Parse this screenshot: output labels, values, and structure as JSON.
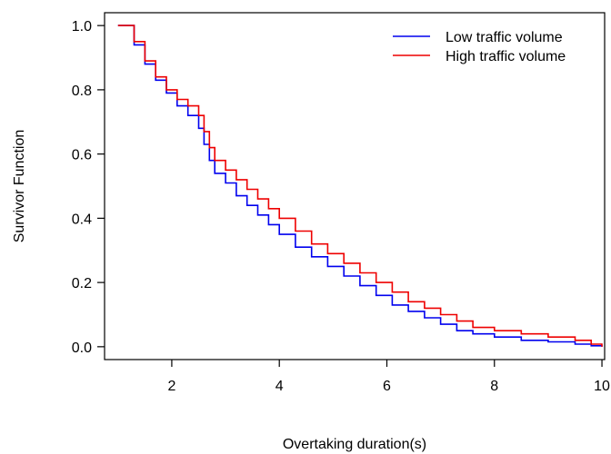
{
  "chart_data": {
    "type": "line",
    "title": "",
    "xlabel": "Overtaking duration(s)",
    "ylabel": "Survivor Function",
    "xlim": [
      0.75,
      10.05
    ],
    "ylim": [
      -0.04,
      1.04
    ],
    "xticks": [
      2,
      4,
      6,
      8,
      10
    ],
    "yticks": [
      0.0,
      0.2,
      0.4,
      0.6,
      0.8,
      1.0
    ],
    "ytick_labels": [
      "0.0",
      "0.2",
      "0.4",
      "0.6",
      "0.8",
      "1.0"
    ],
    "grid": false,
    "legend": "top-right",
    "series": [
      {
        "name": "Low traffic volume",
        "color": "#0000ee",
        "x": [
          1.0,
          1.15,
          1.3,
          1.5,
          1.7,
          1.9,
          2.1,
          2.3,
          2.5,
          2.6,
          2.7,
          2.8,
          3.0,
          3.2,
          3.4,
          3.6,
          3.8,
          4.0,
          4.3,
          4.6,
          4.9,
          5.2,
          5.5,
          5.8,
          6.1,
          6.4,
          6.7,
          7.0,
          7.3,
          7.6,
          8.0,
          8.5,
          9.0,
          9.5,
          9.8,
          10.0
        ],
        "y": [
          1.0,
          1.0,
          0.94,
          0.88,
          0.83,
          0.79,
          0.75,
          0.72,
          0.68,
          0.63,
          0.58,
          0.54,
          0.51,
          0.47,
          0.44,
          0.41,
          0.38,
          0.35,
          0.31,
          0.28,
          0.25,
          0.22,
          0.19,
          0.16,
          0.13,
          0.11,
          0.09,
          0.07,
          0.05,
          0.04,
          0.03,
          0.02,
          0.015,
          0.008,
          0.003,
          0.0
        ]
      },
      {
        "name": "High traffic volume",
        "color": "#ee0000",
        "x": [
          1.0,
          1.15,
          1.3,
          1.5,
          1.7,
          1.9,
          2.1,
          2.3,
          2.5,
          2.6,
          2.7,
          2.8,
          3.0,
          3.2,
          3.4,
          3.6,
          3.8,
          4.0,
          4.3,
          4.6,
          4.9,
          5.2,
          5.5,
          5.8,
          6.1,
          6.4,
          6.7,
          7.0,
          7.3,
          7.6,
          8.0,
          8.5,
          9.0,
          9.5,
          9.8,
          10.0
        ],
        "y": [
          1.0,
          1.0,
          0.95,
          0.89,
          0.84,
          0.8,
          0.77,
          0.75,
          0.72,
          0.67,
          0.62,
          0.58,
          0.55,
          0.52,
          0.49,
          0.46,
          0.43,
          0.4,
          0.36,
          0.32,
          0.29,
          0.26,
          0.23,
          0.2,
          0.17,
          0.14,
          0.12,
          0.1,
          0.08,
          0.06,
          0.05,
          0.04,
          0.03,
          0.02,
          0.008,
          0.0
        ]
      }
    ]
  }
}
